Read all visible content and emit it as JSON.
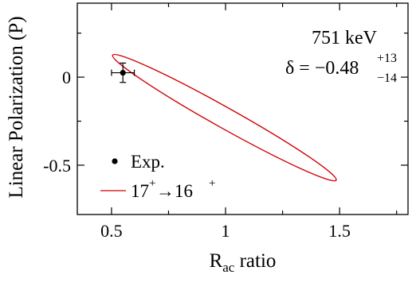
{
  "chart_data": {
    "type": "scatter",
    "xlabel": "R",
    "xlabel_sub": "ac",
    "xlabel_rest": " ratio",
    "ylabel": "Linear Polarization (P)",
    "xlim": [
      0.35,
      1.8
    ],
    "ylim": [
      -0.78,
      0.42
    ],
    "x_ticks": [
      0.5,
      1,
      1.5
    ],
    "x_tick_labels": [
      "0.5",
      "1",
      "1.5"
    ],
    "x_minor_ticks": [
      0.75,
      1.25,
      1.75
    ],
    "y_ticks": [
      0,
      -0.5
    ],
    "y_tick_labels": [
      "0",
      "-0.5"
    ],
    "y_minor_ticks": [
      0.25,
      -0.25
    ],
    "grid": false,
    "legend_position": "bottom-left",
    "annotation": {
      "energy": "751 keV",
      "delta_prefix": "δ = −0.48",
      "delta_sup": "+13",
      "delta_sub": "−14"
    },
    "series": [
      {
        "name": "Exp.",
        "kind": "point",
        "color": "#000000",
        "points": [
          {
            "x": 0.55,
            "y": 0.025,
            "xerr": 0.05,
            "yerr": 0.055
          }
        ]
      },
      {
        "name": "17⁺→16⁺",
        "kind": "ellipse-curve",
        "color": "#d10000",
        "center": {
          "x": 1.0,
          "y": -0.23
        },
        "extremes": {
          "upper_left": {
            "x": 0.505,
            "y": 0.125
          },
          "lower_right": {
            "x": 1.485,
            "y": -0.585
          }
        }
      }
    ],
    "legend": [
      {
        "label": "Exp.",
        "marker": "dot"
      },
      {
        "label_base": "17",
        "label_sup1": "+",
        "label_arrow": "→16",
        "label_sup2": "+",
        "marker": "line"
      }
    ]
  }
}
